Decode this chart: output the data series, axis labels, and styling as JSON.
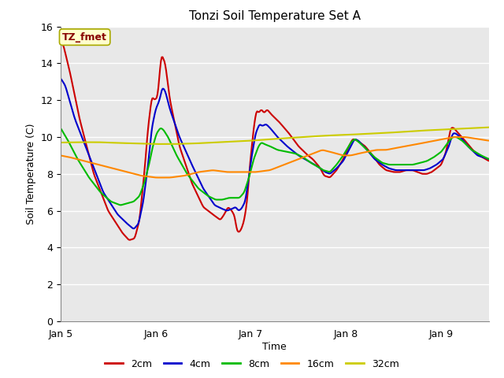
{
  "title": "Tonzi Soil Temperature Set A",
  "xlabel": "Time",
  "ylabel": "Soil Temperature (C)",
  "ylim": [
    0,
    16
  ],
  "yticks": [
    0,
    2,
    4,
    6,
    8,
    10,
    12,
    14,
    16
  ],
  "fig_bg_color": "#ffffff",
  "plot_bg_color": "#e8e8e8",
  "grid_color": "#ffffff",
  "annotation_text": "TZ_fmet",
  "annotation_bg": "#ffffcc",
  "annotation_border": "#aaaa00",
  "legend_entries": [
    "2cm",
    "4cm",
    "8cm",
    "16cm",
    "32cm"
  ],
  "line_colors": [
    "#cc0000",
    "#0000cc",
    "#00bb00",
    "#ff8800",
    "#cccc00"
  ],
  "line_width": 1.5,
  "xtick_positions": [
    5.0,
    6.0,
    7.0,
    8.0,
    9.0
  ],
  "xtick_labels": [
    "Jan 5",
    "Jan 6",
    "Jan 7",
    "Jan 8",
    "Jan 9"
  ]
}
